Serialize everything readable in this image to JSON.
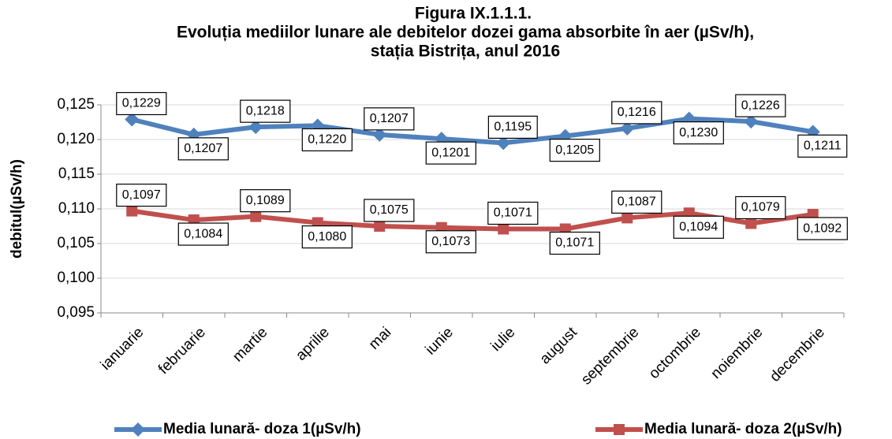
{
  "chart_data": {
    "type": "line",
    "title": [
      "Figura IX.1.1.1.",
      "Evoluția mediilor lunare ale debitelor dozei gama absorbite în aer (µSv/h),",
      "stația Bistrița, anul 2016"
    ],
    "y_label": "debitul(µSv/h)",
    "categories": [
      "ianuarie",
      "februarie",
      "martie",
      "aprilie",
      "mai",
      "iunie",
      "iulie",
      "august",
      "septembrie",
      "octombrie",
      "noiembrie",
      "decembrie"
    ],
    "series": [
      {
        "name": "Media lunară- doza 1(µSv/h)",
        "color": "#4f81bd",
        "marker": "diamond",
        "values": [
          0.1229,
          0.1207,
          0.1218,
          0.122,
          0.1207,
          0.1201,
          0.1195,
          0.1205,
          0.1216,
          0.123,
          0.1226,
          0.1211
        ],
        "value_labels": [
          "0,1229",
          "0,1207",
          "0,1218",
          "0,1220",
          "0,1207",
          "0,1201",
          "0,1195",
          "0,1205",
          "0,1216",
          "0,1230",
          "0,1226",
          "0,1211"
        ]
      },
      {
        "name": "Media lunară- doza 2(µSv/h)",
        "color": "#c0504d",
        "marker": "square",
        "values": [
          0.1097,
          0.1084,
          0.1089,
          0.108,
          0.1075,
          0.1073,
          0.1071,
          0.1071,
          0.1087,
          0.1094,
          0.1079,
          0.1092
        ],
        "value_labels": [
          "0,1097",
          "0,1084",
          "0,1089",
          "0,1080",
          "0,1075",
          "0,1073",
          "0,1071",
          "0,1071",
          "0,1087",
          "0,1094",
          "0,1079",
          "0,1092"
        ]
      }
    ],
    "ylim": [
      0.095,
      0.125
    ],
    "yticks": [
      {
        "value": 0.095,
        "label": "0,095"
      },
      {
        "value": 0.1,
        "label": "0,100"
      },
      {
        "value": 0.105,
        "label": "0,105"
      },
      {
        "value": 0.11,
        "label": "0,110"
      },
      {
        "value": 0.115,
        "label": "0,115"
      },
      {
        "value": 0.12,
        "label": "0,120"
      },
      {
        "value": 0.125,
        "label": "0,125"
      }
    ],
    "grid": true
  }
}
